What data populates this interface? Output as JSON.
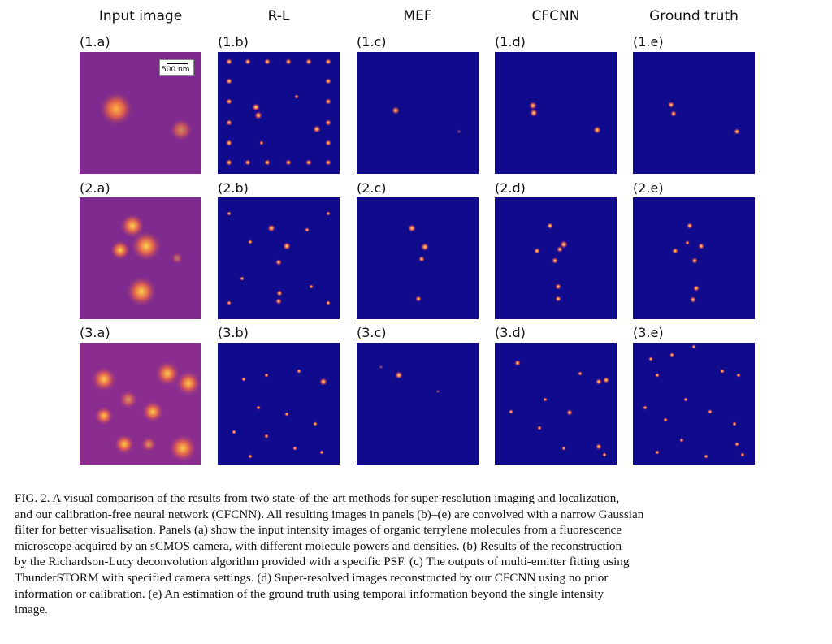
{
  "figure": {
    "columns": [
      "Input image",
      "R-L",
      "MEF",
      "CFCNN",
      "Ground truth"
    ],
    "panels": [
      [
        "(1.a)",
        "(1.b)",
        "(1.c)",
        "(1.d)",
        "(1.e)"
      ],
      [
        "(2.a)",
        "(2.b)",
        "(2.c)",
        "(2.d)",
        "(2.e)"
      ],
      [
        "(3.a)",
        "(3.b)",
        "(3.c)",
        "(3.d)",
        "(3.e)"
      ]
    ],
    "scale_bar": "500 nm",
    "colors": {
      "input_bg": "#7e2a8e",
      "recon_bg": "#100a8c",
      "spot": "#ffd23a"
    }
  },
  "caption": {
    "lines": [
      "FIG. 2.  A visual comparison of the results from two state-of-the-art methods for super-resolution imaging and localization,",
      "and our calibration-free neural network (CFCNN). All resulting images in panels (b)–(e) are convolved with a narrow Gaussian",
      "filter for better visualisation.  Panels (a) show the input intensity images of organic terrylene molecules from a fluorescence",
      "microscope acquired by an sCMOS camera, with different molecule powers and densities.  (b) Results of the reconstruction",
      "by the Richardson-Lucy deconvolution algorithm provided with a specific PSF. (c) The outputs of multi-emitter fitting using",
      "ThunderSTORM with specified camera settings.  (d) Super-resolved images reconstructed by our CFCNN using no prior",
      "information or calibration.  (e) An estimation of the ground truth using temporal information beyond the single intensity",
      "image."
    ]
  }
}
